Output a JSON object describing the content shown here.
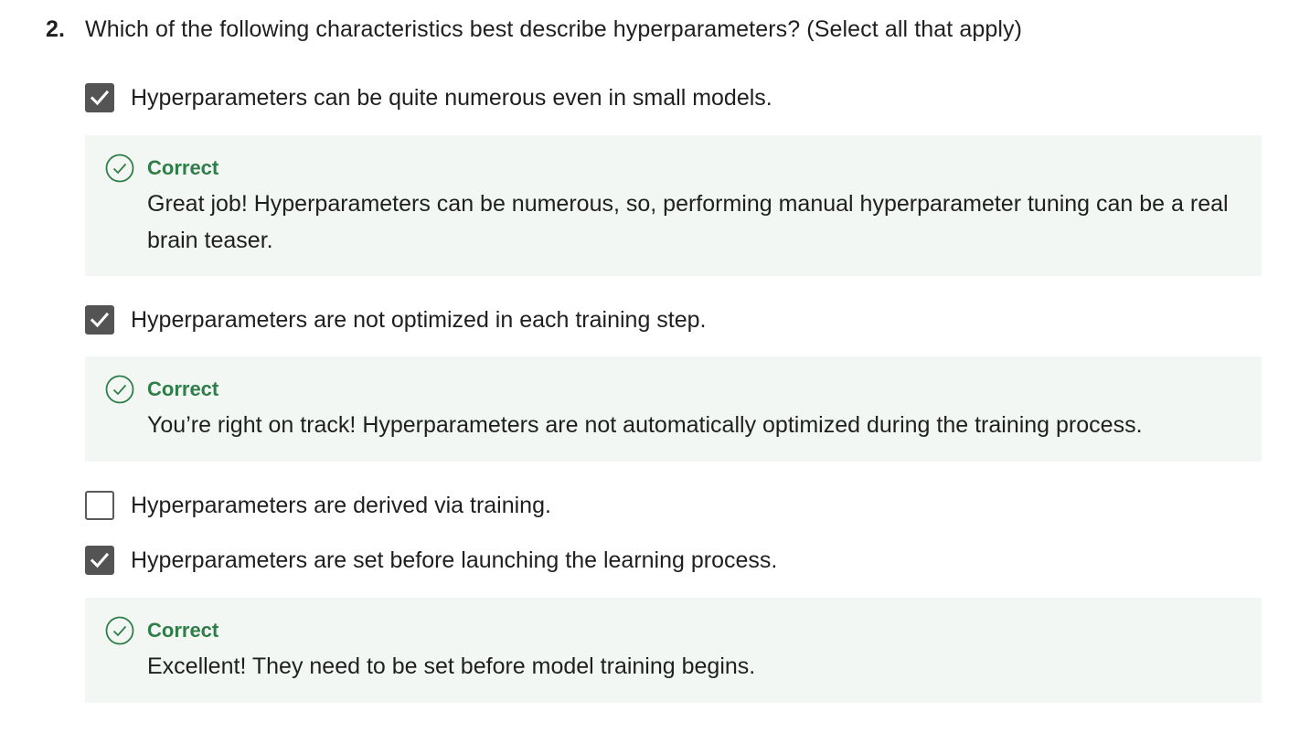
{
  "question": {
    "number": "2.",
    "text": "Which of the following characteristics best describe hyperparameters? (Select all that apply)"
  },
  "options": [
    {
      "label": "Hyperparameters can be quite numerous even in small models.",
      "checked": true,
      "feedback": {
        "status": "Correct",
        "text": "Great job! Hyperparameters can be numerous, so, performing manual hyperparameter tuning can be a real brain teaser."
      }
    },
    {
      "label": "Hyperparameters are not optimized in each training step.",
      "checked": true,
      "feedback": {
        "status": "Correct",
        "text": "You’re right on track! Hyperparameters are not automatically optimized during the training process."
      }
    },
    {
      "label": "Hyperparameters are derived via training.",
      "checked": false
    },
    {
      "label": "Hyperparameters are set before launching the learning process.",
      "checked": true,
      "feedback": {
        "status": "Correct",
        "text": "Excellent! They need to be set before model training begins."
      }
    }
  ],
  "colors": {
    "correct": "#2f7d48",
    "feedback_bg": "#f3f7f4",
    "checkbox_checked": "#545454"
  },
  "icons": {
    "checked": "checkmark-icon",
    "feedback": "check-circle-icon"
  }
}
